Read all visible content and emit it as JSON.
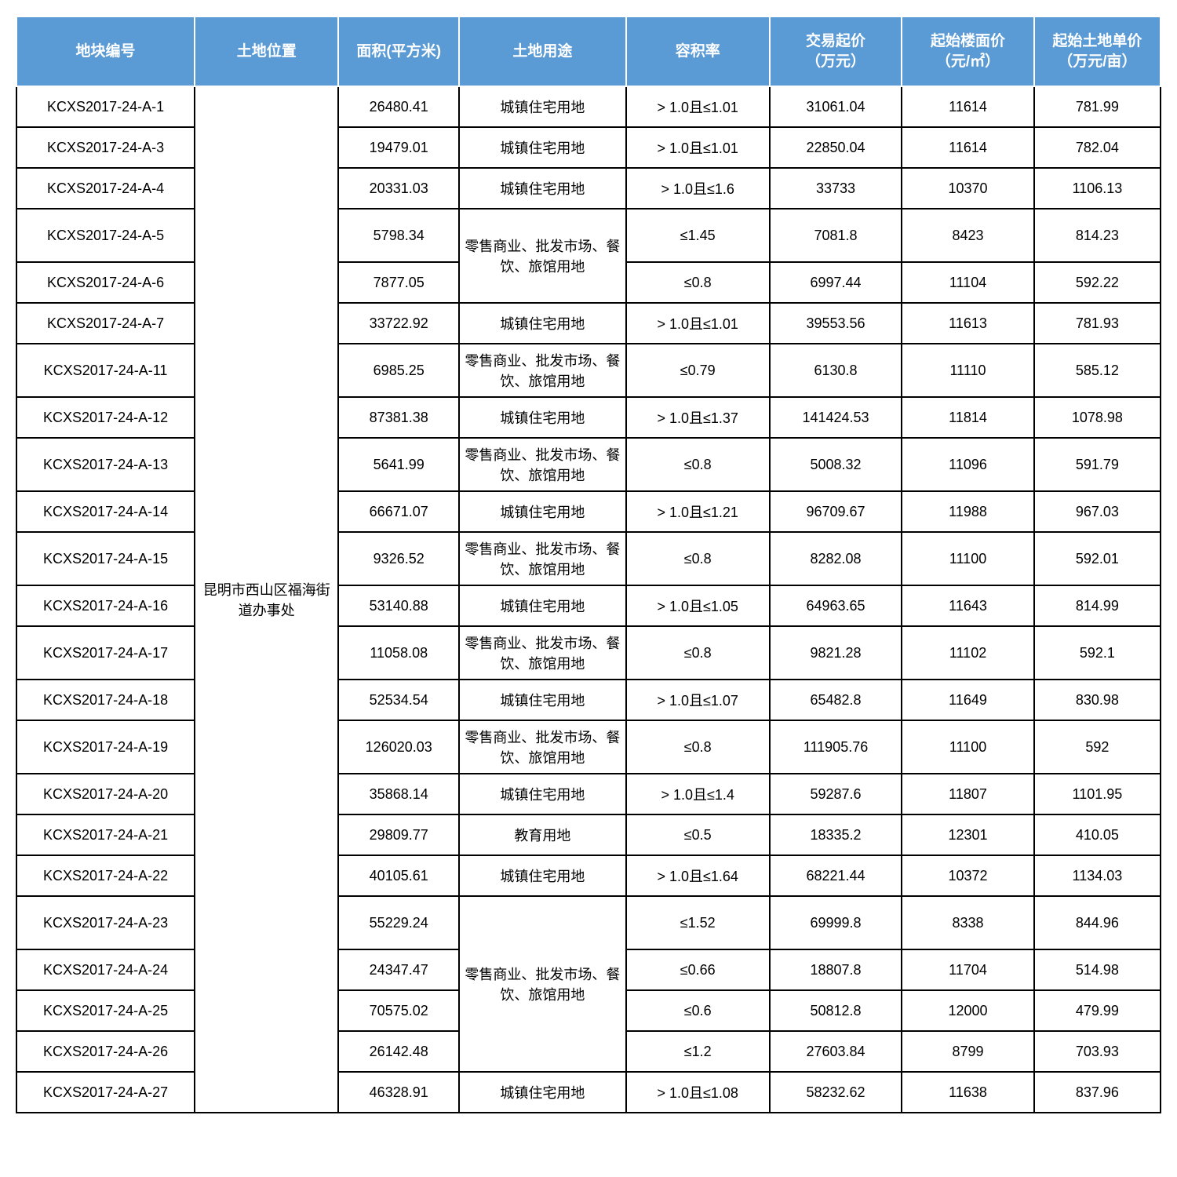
{
  "table": {
    "header_bg": "#5b9bd5",
    "header_fg": "#ffffff",
    "cell_bg": "#ffffff",
    "cell_fg": "#000000",
    "border_color": "#000000",
    "columns": [
      "地块编号",
      "土地位置",
      "面积(平方米)",
      "土地用途",
      "容积率",
      "交易起价\n（万元）",
      "起始楼面价\n（元/㎡）",
      "起始土地单价\n（万元/亩）"
    ],
    "location_merged": "昆明市西山区福海街道办事处",
    "use_residential": "城镇住宅用地",
    "use_commercial": "零售商业、批发市场、餐饮、旅馆用地",
    "use_education": "教育用地",
    "rows": [
      {
        "id": "KCXS2017-24-A-1",
        "area": "26480.41",
        "use": "res",
        "ratio": "> 1.0且≤1.01",
        "price": "31061.04",
        "floor": "11614",
        "unit": "781.99"
      },
      {
        "id": "KCXS2017-24-A-3",
        "area": "19479.01",
        "use": "res",
        "ratio": "> 1.0且≤1.01",
        "price": "22850.04",
        "floor": "11614",
        "unit": "782.04"
      },
      {
        "id": "KCXS2017-24-A-4",
        "area": "20331.03",
        "use": "res",
        "ratio": "> 1.0且≤1.6",
        "price": "33733",
        "floor": "10370",
        "unit": "1106.13"
      },
      {
        "id": "KCXS2017-24-A-5",
        "area": "5798.34",
        "use": "com_merge_start_2",
        "ratio": "≤1.45",
        "price": "7081.8",
        "floor": "8423",
        "unit": "814.23"
      },
      {
        "id": "KCXS2017-24-A-6",
        "area": "7877.05",
        "use": "com_merged",
        "ratio": "≤0.8",
        "price": "6997.44",
        "floor": "11104",
        "unit": "592.22"
      },
      {
        "id": "KCXS2017-24-A-7",
        "area": "33722.92",
        "use": "res",
        "ratio": "> 1.0且≤1.01",
        "price": "39553.56",
        "floor": "11613",
        "unit": "781.93"
      },
      {
        "id": "KCXS2017-24-A-11",
        "area": "6985.25",
        "use": "com",
        "ratio": "≤0.79",
        "price": "6130.8",
        "floor": "11110",
        "unit": "585.12"
      },
      {
        "id": "KCXS2017-24-A-12",
        "area": "87381.38",
        "use": "res",
        "ratio": "> 1.0且≤1.37",
        "price": "141424.53",
        "floor": "11814",
        "unit": "1078.98"
      },
      {
        "id": "KCXS2017-24-A-13",
        "area": "5641.99",
        "use": "com",
        "ratio": "≤0.8",
        "price": "5008.32",
        "floor": "11096",
        "unit": "591.79"
      },
      {
        "id": "KCXS2017-24-A-14",
        "area": "66671.07",
        "use": "res",
        "ratio": "> 1.0且≤1.21",
        "price": "96709.67",
        "floor": "11988",
        "unit": "967.03"
      },
      {
        "id": "KCXS2017-24-A-15",
        "area": "9326.52",
        "use": "com",
        "ratio": "≤0.8",
        "price": "8282.08",
        "floor": "11100",
        "unit": "592.01"
      },
      {
        "id": "KCXS2017-24-A-16",
        "area": "53140.88",
        "use": "res",
        "ratio": "> 1.0且≤1.05",
        "price": "64963.65",
        "floor": "11643",
        "unit": "814.99"
      },
      {
        "id": "KCXS2017-24-A-17",
        "area": "11058.08",
        "use": "com",
        "ratio": "≤0.8",
        "price": "9821.28",
        "floor": "11102",
        "unit": "592.1"
      },
      {
        "id": "KCXS2017-24-A-18",
        "area": "52534.54",
        "use": "res",
        "ratio": "> 1.0且≤1.07",
        "price": "65482.8",
        "floor": "11649",
        "unit": "830.98"
      },
      {
        "id": "KCXS2017-24-A-19",
        "area": "126020.03",
        "use": "com",
        "ratio": "≤0.8",
        "price": "111905.76",
        "floor": "11100",
        "unit": "592"
      },
      {
        "id": "KCXS2017-24-A-20",
        "area": "35868.14",
        "use": "res",
        "ratio": "> 1.0且≤1.4",
        "price": "59287.6",
        "floor": "11807",
        "unit": "1101.95"
      },
      {
        "id": "KCXS2017-24-A-21",
        "area": "29809.77",
        "use": "edu",
        "ratio": "≤0.5",
        "price": "18335.2",
        "floor": "12301",
        "unit": "410.05"
      },
      {
        "id": "KCXS2017-24-A-22",
        "area": "40105.61",
        "use": "res",
        "ratio": "> 1.0且≤1.64",
        "price": "68221.44",
        "floor": "10372",
        "unit": "1134.03"
      },
      {
        "id": "KCXS2017-24-A-23",
        "area": "55229.24",
        "use": "com_merge_start_4",
        "ratio": "≤1.52",
        "price": "69999.8",
        "floor": "8338",
        "unit": "844.96"
      },
      {
        "id": "KCXS2017-24-A-24",
        "area": "24347.47",
        "use": "com_merged",
        "ratio": "≤0.66",
        "price": "18807.8",
        "floor": "11704",
        "unit": "514.98"
      },
      {
        "id": "KCXS2017-24-A-25",
        "area": "70575.02",
        "use": "com_merged",
        "ratio": "≤0.6",
        "price": "50812.8",
        "floor": "12000",
        "unit": "479.99"
      },
      {
        "id": "KCXS2017-24-A-26",
        "area": "26142.48",
        "use": "com_merged",
        "ratio": "≤1.2",
        "price": "27603.84",
        "floor": "8799",
        "unit": "703.93"
      },
      {
        "id": "KCXS2017-24-A-27",
        "area": "46328.91",
        "use": "res",
        "ratio": "> 1.0且≤1.08",
        "price": "58232.62",
        "floor": "11638",
        "unit": "837.96"
      }
    ]
  }
}
